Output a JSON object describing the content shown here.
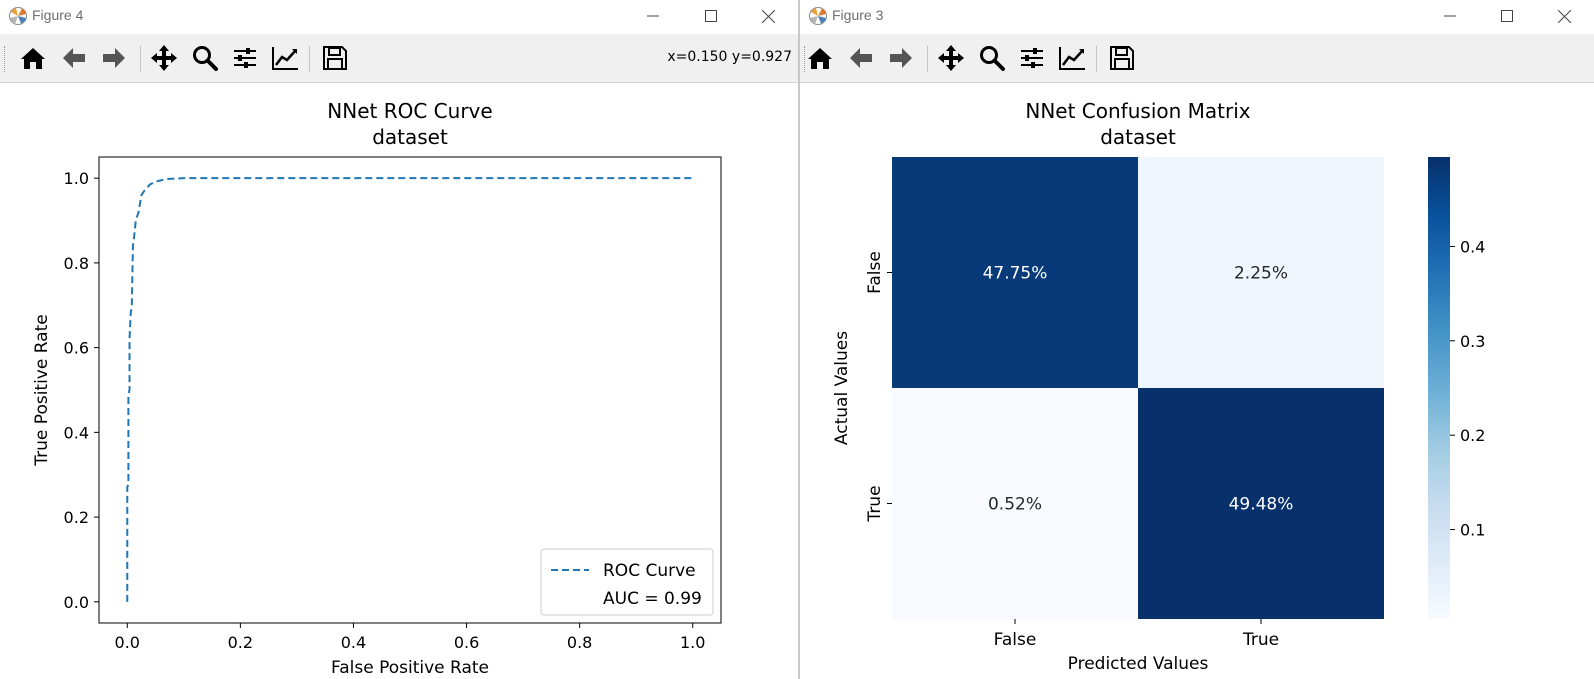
{
  "windows": [
    {
      "title": "Figure 4",
      "coords": "x=0.150 y=0.927",
      "chart_data": {
        "type": "line",
        "title": "NNet ROC Curve",
        "subtitle": "dataset",
        "xlabel": "False Positive Rate",
        "ylabel": "True Positive Rate",
        "xlim": [
          -0.05,
          1.05
        ],
        "ylim": [
          -0.05,
          1.05
        ],
        "xticks": [
          "0.0",
          "0.2",
          "0.4",
          "0.6",
          "0.8",
          "1.0"
        ],
        "yticks": [
          "0.0",
          "0.2",
          "0.4",
          "0.6",
          "0.8",
          "1.0"
        ],
        "legend_position": "lower-right",
        "series": [
          {
            "name": "ROC Curve",
            "color": "#1f77b4",
            "style": "dashed",
            "x": [
              0.0,
              0.0,
              0.002,
              0.002,
              0.004,
              0.004,
              0.006,
              0.008,
              0.01,
              0.012,
              0.015,
              0.02,
              0.025,
              0.03,
              0.04,
              0.05,
              0.07,
              0.1,
              0.3,
              0.6,
              1.0
            ],
            "y": [
              0.0,
              0.27,
              0.28,
              0.49,
              0.5,
              0.62,
              0.68,
              0.7,
              0.84,
              0.86,
              0.9,
              0.92,
              0.96,
              0.97,
              0.985,
              0.992,
              0.998,
              1.0,
              1.0,
              1.0,
              1.0
            ]
          }
        ],
        "legend": [
          "ROC Curve",
          "AUC = 0.99"
        ]
      }
    },
    {
      "title": "Figure 3",
      "chart_data": {
        "type": "heatmap",
        "title": "NNet Confusion Matrix",
        "subtitle": "dataset",
        "xlabel": "Predicted Values",
        "ylabel": "Actual Values",
        "x_categories": [
          "False",
          "True"
        ],
        "y_categories": [
          "False",
          "True"
        ],
        "values": [
          [
            0.4775,
            0.0225
          ],
          [
            0.0052,
            0.4948
          ]
        ],
        "cell_labels": [
          [
            "47.75%",
            "2.25%"
          ],
          [
            "0.52%",
            "49.48%"
          ]
        ],
        "colorbar_ticks": [
          "0.1",
          "0.2",
          "0.3",
          "0.4"
        ],
        "colorbar_range": [
          0.0052,
          0.4948
        ],
        "colormap": "Blues"
      }
    }
  ],
  "toolbar": [
    "home-icon",
    "back-icon",
    "forward-icon",
    "pan-icon",
    "zoom-icon",
    "subplots-icon",
    "customize-icon",
    "save-icon"
  ]
}
